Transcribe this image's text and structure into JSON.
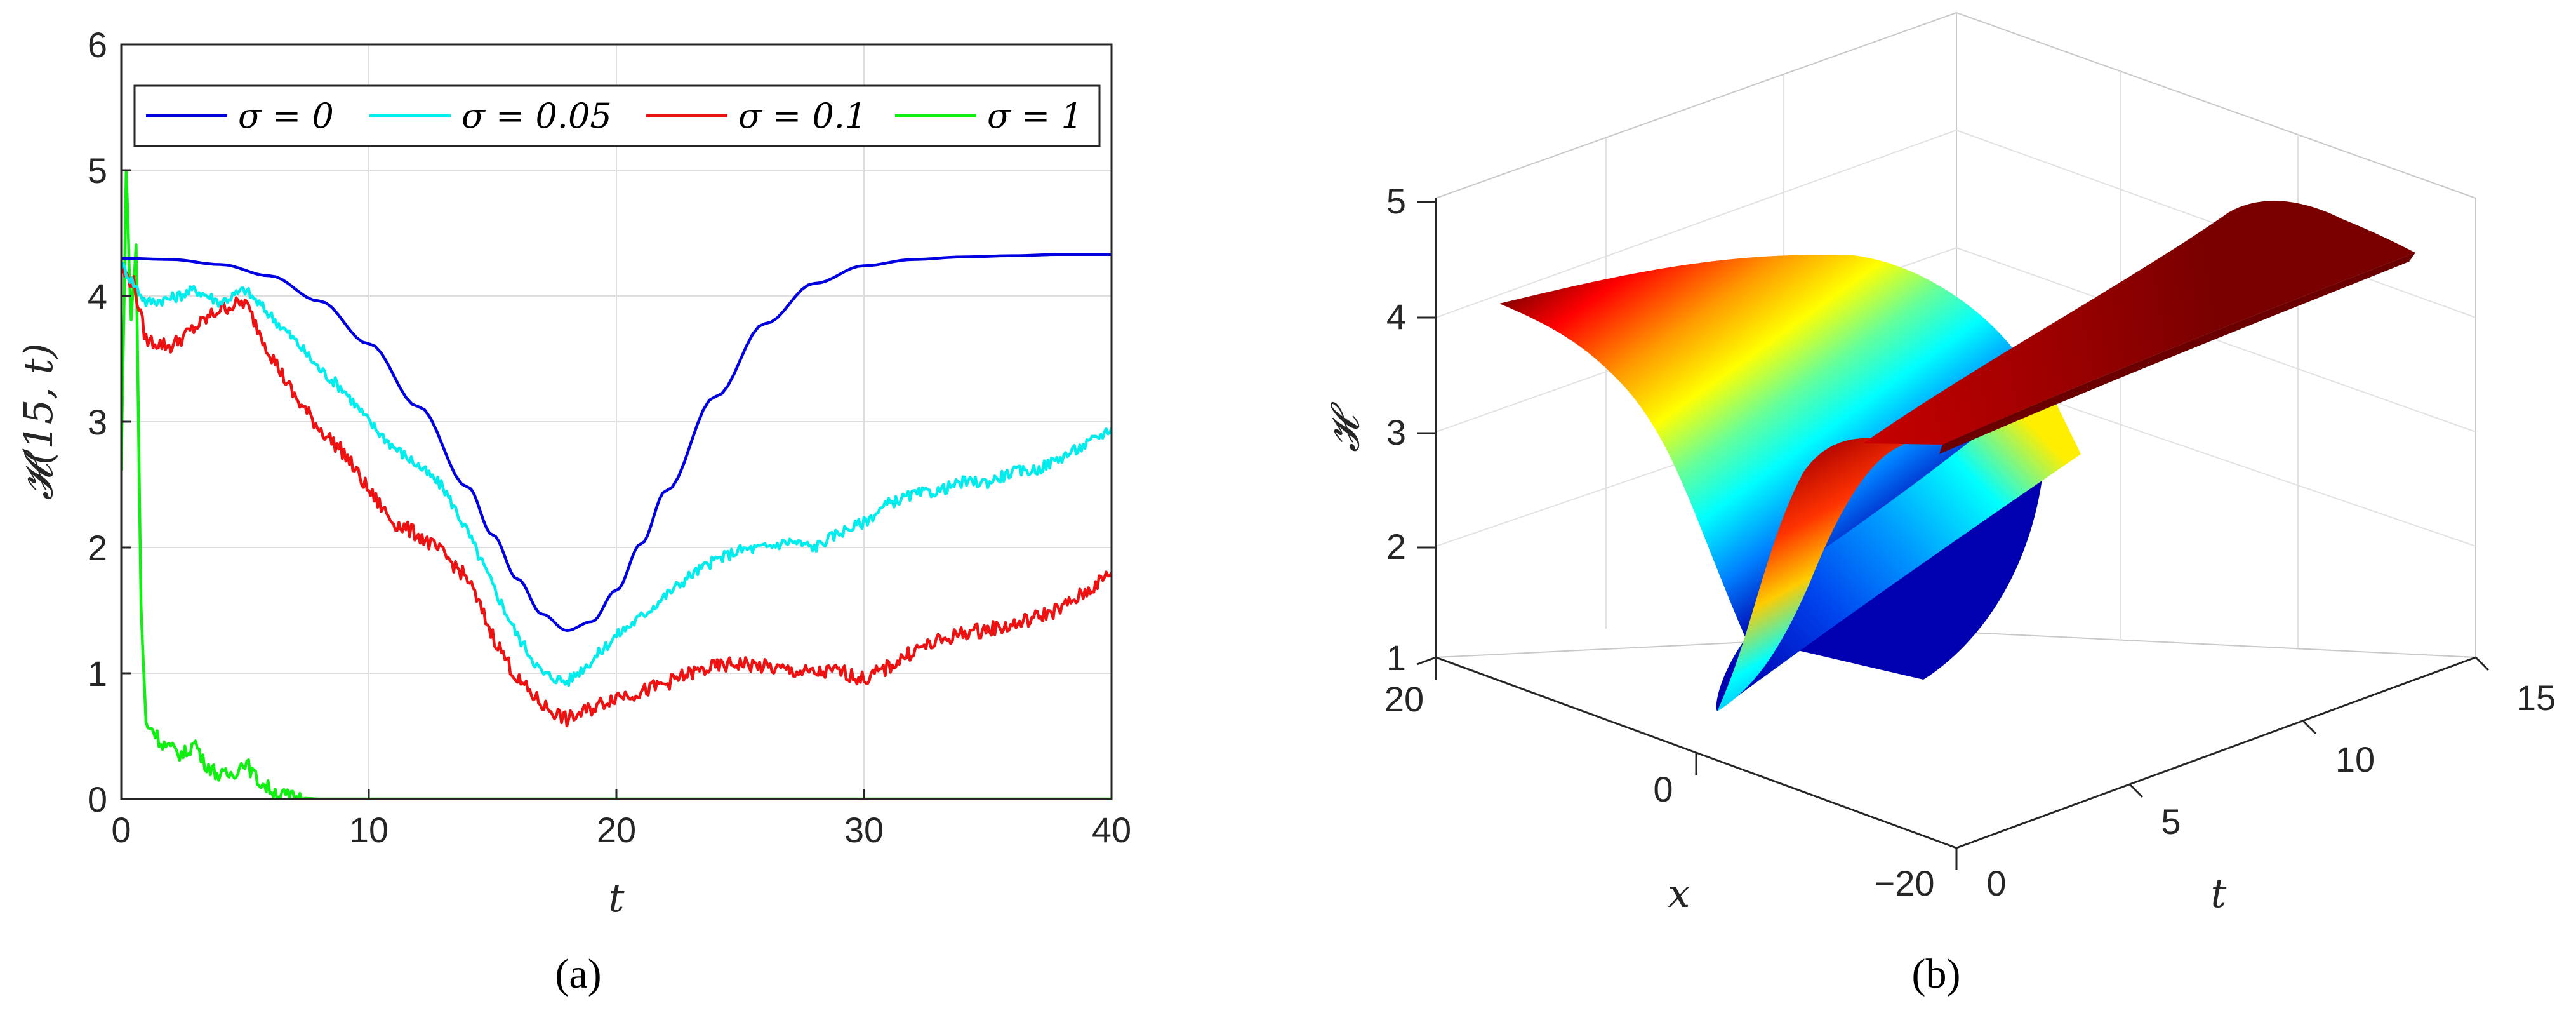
{
  "panel_labels": {
    "a": "(a)",
    "b": "(b)"
  },
  "colors": {
    "sigma_0": "#0000e0",
    "sigma_005": "#00eded",
    "sigma_01": "#ee1111",
    "sigma_1": "#11ee11",
    "grid": "#dedede",
    "axis": "#262626"
  },
  "chart_data": [
    {
      "type": "line",
      "xlabel": "t",
      "ylabel": "𝓗(15, t)",
      "xlim": [
        0,
        40
      ],
      "ylim": [
        0,
        6
      ],
      "xticks": [
        "0",
        "10",
        "20",
        "30",
        "40"
      ],
      "yticks": [
        "0",
        "1",
        "2",
        "3",
        "4",
        "5",
        "6"
      ],
      "grid": true,
      "legend": {
        "placement": "top",
        "orientation": "horizontal"
      },
      "series": [
        {
          "name": "σ = 0",
          "color": "#0000e0",
          "x": [
            0,
            2,
            4,
            6,
            8,
            10,
            12,
            14,
            15,
            16,
            17,
            18,
            19,
            20,
            21,
            22,
            24,
            26,
            28,
            30,
            32,
            34,
            36,
            38,
            40
          ],
          "y": [
            4.3,
            4.29,
            4.25,
            4.16,
            3.96,
            3.62,
            3.12,
            2.48,
            2.1,
            1.75,
            1.47,
            1.34,
            1.41,
            1.66,
            2.03,
            2.45,
            3.2,
            3.78,
            4.1,
            4.24,
            4.29,
            4.31,
            4.32,
            4.33,
            4.33
          ]
        },
        {
          "name": "σ = 0.05",
          "color": "#00eded",
          "x": [
            0,
            0.5,
            1,
            2,
            3,
            4,
            5,
            6,
            7,
            8,
            9,
            10,
            11,
            12,
            13,
            14,
            15,
            16,
            17,
            18,
            19,
            20,
            21,
            22,
            23,
            24,
            25,
            26,
            27,
            28,
            29,
            30,
            31,
            32,
            33,
            34,
            35,
            36,
            37,
            38,
            39,
            40
          ],
          "y": [
            4.25,
            4.1,
            3.95,
            3.98,
            4.05,
            3.95,
            4.05,
            3.85,
            3.65,
            3.42,
            3.25,
            3.0,
            2.8,
            2.65,
            2.48,
            2.12,
            1.7,
            1.3,
            1.0,
            0.93,
            1.1,
            1.3,
            1.45,
            1.62,
            1.78,
            1.9,
            1.98,
            2.0,
            2.05,
            2.0,
            2.12,
            2.2,
            2.35,
            2.42,
            2.45,
            2.52,
            2.52,
            2.6,
            2.62,
            2.72,
            2.82,
            2.95
          ]
        },
        {
          "name": "σ = 0.1",
          "color": "#ee1111",
          "x": [
            0,
            0.5,
            1,
            2,
            3,
            4,
            5,
            6,
            7,
            8,
            9,
            10,
            11,
            12,
            13,
            14,
            15,
            16,
            17,
            18,
            19,
            20,
            21,
            22,
            23,
            24,
            25,
            26,
            27,
            28,
            29,
            30,
            31,
            32,
            33,
            34,
            35,
            36,
            37,
            38,
            39,
            40
          ],
          "y": [
            4.2,
            4.1,
            3.65,
            3.6,
            3.75,
            3.9,
            3.95,
            3.55,
            3.2,
            2.95,
            2.75,
            2.45,
            2.2,
            2.1,
            1.95,
            1.75,
            1.3,
            0.95,
            0.75,
            0.63,
            0.72,
            0.82,
            0.85,
            0.92,
            1.0,
            1.05,
            1.08,
            1.05,
            1.02,
            1.0,
            1.02,
            0.95,
            1.05,
            1.18,
            1.25,
            1.32,
            1.35,
            1.38,
            1.45,
            1.52,
            1.65,
            1.8
          ]
        },
        {
          "name": "σ = 1",
          "color": "#11ee11",
          "x": [
            0,
            0.2,
            0.4,
            0.6,
            0.8,
            1,
            1.3,
            1.6,
            2,
            2.5,
            3,
            3.3,
            3.6,
            4,
            4.5,
            5,
            5.5,
            6,
            6.5,
            7,
            8,
            9,
            10,
            15,
            20,
            30,
            40
          ],
          "y": [
            2.6,
            5.0,
            3.8,
            4.4,
            1.5,
            0.6,
            0.55,
            0.45,
            0.4,
            0.35,
            0.45,
            0.3,
            0.25,
            0.18,
            0.2,
            0.3,
            0.15,
            0.08,
            0.03,
            0.01,
            0,
            0,
            0,
            0,
            0,
            0,
            0
          ]
        }
      ]
    },
    {
      "type": "surface",
      "zlabel": "𝓗",
      "xlabel": "x",
      "ylabel": "t",
      "xlim": [
        -20,
        20
      ],
      "ylim": [
        0,
        15
      ],
      "zlim": [
        1,
        5
      ],
      "xticks": [
        "20",
        "0",
        "−20"
      ],
      "yticks": [
        "0",
        "5",
        "10",
        "15"
      ],
      "zticks": [
        "1",
        "2",
        "3",
        "4",
        "5"
      ],
      "colormap": "jet",
      "grid": true
    }
  ]
}
